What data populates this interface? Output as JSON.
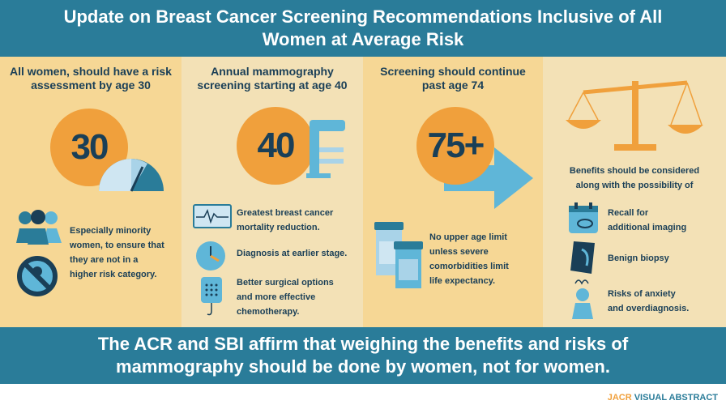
{
  "header": {
    "line1": "Update on Breast Cancer Screening Recommendations Inclusive of All",
    "line2": "Women at Average Risk"
  },
  "col1": {
    "title_line1": "All women, should have a risk",
    "title_line2": "assessment by age 30",
    "number": "30",
    "text": [
      "Especially minority",
      "women, to ensure that",
      "they are not in a",
      "higher risk category."
    ]
  },
  "col2": {
    "title_line1": "Annual mammography",
    "title_line2": "screening starting at age 40",
    "number": "40",
    "item1": [
      "Greatest breast cancer",
      "mortality reduction."
    ],
    "item2": [
      "Diagnosis at earlier stage."
    ],
    "item3": [
      "Better surgical options",
      "and more effective",
      "chemotherapy."
    ]
  },
  "col3": {
    "title_line1": "Screening should continue",
    "title_line2": "past age 74",
    "number": "75+",
    "text": [
      "No upper age limit",
      "unless severe",
      "comorbidities limit",
      "life expectancy."
    ]
  },
  "col4": {
    "intro": [
      "Benefits should be considered",
      "along with the possibility of"
    ],
    "item1": [
      "Recall for",
      "additional imaging"
    ],
    "item2": [
      "Benign biopsy"
    ],
    "item3": [
      "Risks of anxiety",
      "and overdiagnosis."
    ]
  },
  "footer": {
    "line1": "The ACR and SBI affirm that weighing the benefits and risks of",
    "line2": "mammography should be done by women, not for women."
  },
  "brand": {
    "jacr": "JACR",
    "rest": " VISUAL ABSTRACT"
  },
  "icons": [
    "people-icon",
    "no-sign-icon",
    "gauge-icon",
    "mammography-machine-icon",
    "heart-monitor-icon",
    "clock-icon",
    "iv-drip-icon",
    "arrow-right-icon",
    "pill-bottles-icon",
    "scale-icon",
    "calendar-icon",
    "biopsy-icon",
    "anxiety-person-icon"
  ],
  "colors": {
    "teal": "#2a7c99",
    "orange": "#f0a03c",
    "light_blue": "#5fb6d8",
    "dark": "#1a3f57"
  }
}
